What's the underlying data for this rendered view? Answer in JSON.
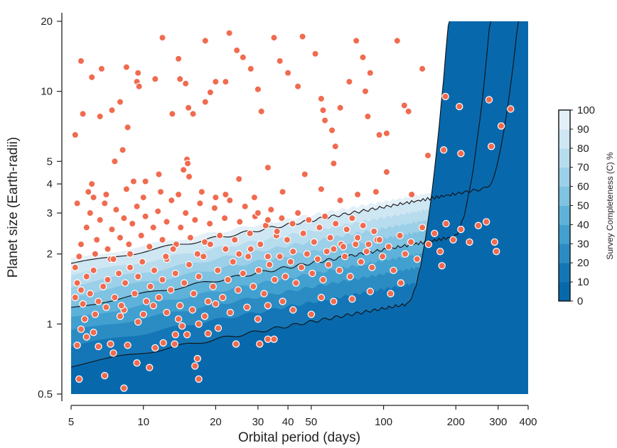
{
  "chart_data": {
    "type": "scatter",
    "title": "",
    "xlabel": "Orbital period (days)",
    "ylabel": "Planet size (Earth-radii)",
    "x_scale": "log",
    "y_scale": "log",
    "xlim": [
      5,
      400
    ],
    "ylim": [
      0.5,
      20
    ],
    "x_ticks": [
      5,
      10,
      20,
      30,
      40,
      50,
      100,
      200,
      300,
      400
    ],
    "x_tick_labels": [
      "5",
      "10",
      "20",
      "30",
      "40",
      "50",
      "100",
      "200",
      "300",
      "400"
    ],
    "y_ticks": [
      0.5,
      1,
      2,
      3,
      4,
      5,
      10,
      20
    ],
    "y_tick_labels": [
      "0.5",
      "1",
      "2",
      "3",
      "4",
      "5",
      "10",
      "20"
    ],
    "grid": false,
    "marker_color": "#f06b4f",
    "background": {
      "type": "contour",
      "label": "Survey Completeness (C) %",
      "levels": [
        0,
        10,
        20,
        30,
        40,
        50,
        60,
        70,
        80,
        90,
        100
      ],
      "colors": [
        "#0868ac",
        "#1476b6",
        "#2b8cc4",
        "#41a0cf",
        "#5eb2d9",
        "#7fc2e1",
        "#9ccfe8",
        "#b7dcee",
        "#cfe6f3",
        "#e4f0f8",
        "#ffffff"
      ],
      "contour_lines_at": [
        10,
        50,
        90
      ],
      "colorbar_ticks": [
        "0",
        "10",
        "20",
        "30",
        "40",
        "50",
        "60",
        "70",
        "80",
        "90",
        "100"
      ]
    },
    "points": [
      [
        5.5,
        13.5
      ],
      [
        5.2,
        6.5
      ],
      [
        5.6,
        8.0
      ],
      [
        6.1,
        11.5
      ],
      [
        6.7,
        12.5
      ],
      [
        6.6,
        7.8
      ],
      [
        7.4,
        8.3
      ],
      [
        7.6,
        5.0
      ],
      [
        8.2,
        5.6
      ],
      [
        8.0,
        9.0
      ],
      [
        8.6,
        7.0
      ],
      [
        8.5,
        12.7
      ],
      [
        9.5,
        12.0
      ],
      [
        9.4,
        11.0
      ],
      [
        9.6,
        10.5
      ],
      [
        11.2,
        11.3
      ],
      [
        12.0,
        17.0
      ],
      [
        13.2,
        8.0
      ],
      [
        14.0,
        13.8
      ],
      [
        14.2,
        11.3
      ],
      [
        15.0,
        10.8
      ],
      [
        15.4,
        8.5
      ],
      [
        16.1,
        8.0
      ],
      [
        18.1,
        16.5
      ],
      [
        18.1,
        9.0
      ],
      [
        19.0,
        9.9
      ],
      [
        20.0,
        11.0
      ],
      [
        22.0,
        11.0
      ],
      [
        22.8,
        17.8
      ],
      [
        24.5,
        15.0
      ],
      [
        26.0,
        14.0
      ],
      [
        28.0,
        12.5
      ],
      [
        30.0,
        10.2
      ],
      [
        31.0,
        8.2
      ],
      [
        35.0,
        17.0
      ],
      [
        37.0,
        13.5
      ],
      [
        40.0,
        12.0
      ],
      [
        44.0,
        10.5
      ],
      [
        46.0,
        17.2
      ],
      [
        52.0,
        14.5
      ],
      [
        55.0,
        9.3
      ],
      [
        56.0,
        8.3
      ],
      [
        57.0,
        7.5
      ],
      [
        61.0,
        6.8
      ],
      [
        62.0,
        4.9
      ],
      [
        63.0,
        5.8
      ],
      [
        66.0,
        8.5
      ],
      [
        72.0,
        11.0
      ],
      [
        77.0,
        16.5
      ],
      [
        82.0,
        14.0
      ],
      [
        86.0,
        7.8
      ],
      [
        84.0,
        10.0
      ],
      [
        88.0,
        12.0
      ],
      [
        96.0,
        6.5
      ],
      [
        103.0,
        6.6
      ],
      [
        114.0,
        16.5
      ],
      [
        122.0,
        8.7
      ],
      [
        127.0,
        8.2
      ],
      [
        145.0,
        12.5
      ],
      [
        153.0,
        5.3
      ],
      [
        178.0,
        5.6
      ],
      [
        181.0,
        9.5
      ],
      [
        207.0,
        8.6
      ],
      [
        210.0,
        5.4
      ],
      [
        275.0,
        9.2
      ],
      [
        281.0,
        5.8
      ],
      [
        309.0,
        7.1
      ],
      [
        338.0,
        8.4
      ],
      [
        5.7,
        1.05
      ],
      [
        5.5,
        0.95
      ],
      [
        5.8,
        0.88
      ],
      [
        6.2,
        0.92
      ],
      [
        5.3,
        0.81
      ],
      [
        6.5,
        0.8
      ],
      [
        7.3,
        0.82
      ],
      [
        7.5,
        0.75
      ],
      [
        8.3,
        1.15
      ],
      [
        8.6,
        0.81
      ],
      [
        11.2,
        0.79
      ],
      [
        12.1,
        0.83
      ],
      [
        15.2,
        0.9
      ],
      [
        16.4,
        0.66
      ],
      [
        17.0,
        1.0
      ],
      [
        18.6,
        0.91
      ],
      [
        20.5,
        0.96
      ],
      [
        24.3,
        0.82
      ],
      [
        30.5,
        0.82
      ],
      [
        33.0,
        0.86
      ],
      [
        35.0,
        0.86
      ],
      [
        5.4,
        0.58
      ],
      [
        6.9,
        0.6
      ],
      [
        8.3,
        0.53
      ],
      [
        17.0,
        0.58
      ],
      [
        9.4,
        0.68
      ],
      [
        10.6,
        0.65
      ],
      [
        16.8,
        0.71
      ],
      [
        13.5,
        0.82
      ],
      [
        13.6,
        0.9
      ],
      [
        14.5,
        0.98
      ],
      [
        10.0,
        1.1
      ]
    ],
    "points_extra": [
      [
        5.2,
        1.75
      ],
      [
        5.3,
        1.5
      ],
      [
        5.5,
        1.4
      ],
      [
        5.8,
        1.6
      ],
      [
        6.0,
        1.35
      ],
      [
        6.2,
        1.7
      ],
      [
        6.5,
        1.25
      ],
      [
        6.8,
        1.45
      ],
      [
        7.1,
        1.55
      ],
      [
        7.3,
        1.9
      ],
      [
        7.6,
        1.3
      ],
      [
        7.9,
        1.65
      ],
      [
        8.1,
        1.2
      ],
      [
        8.4,
        1.5
      ],
      [
        8.8,
        1.75
      ],
      [
        9.2,
        1.35
      ],
      [
        9.5,
        1.6
      ],
      [
        9.9,
        1.85
      ],
      [
        10.3,
        1.25
      ],
      [
        10.7,
        1.45
      ],
      [
        11.1,
        1.7
      ],
      [
        11.6,
        1.3
      ],
      [
        12.0,
        1.55
      ],
      [
        12.5,
        1.9
      ],
      [
        13.0,
        1.4
      ],
      [
        13.6,
        1.65
      ],
      [
        14.2,
        1.2
      ],
      [
        14.8,
        1.5
      ],
      [
        15.5,
        1.8
      ],
      [
        16.2,
        1.35
      ],
      [
        17.0,
        1.6
      ],
      [
        17.8,
        1.95
      ],
      [
        18.6,
        1.25
      ],
      [
        19.5,
        1.45
      ],
      [
        20.4,
        1.7
      ],
      [
        21.4,
        1.3
      ],
      [
        22.5,
        1.55
      ],
      [
        23.6,
        1.85
      ],
      [
        24.8,
        1.4
      ],
      [
        26.0,
        1.65
      ],
      [
        27.3,
        1.95
      ],
      [
        28.7,
        1.45
      ],
      [
        30.2,
        1.7
      ],
      [
        31.8,
        1.35
      ],
      [
        33.5,
        1.8
      ],
      [
        35.2,
        1.55
      ],
      [
        37.0,
        1.95
      ],
      [
        39.0,
        1.6
      ],
      [
        41.0,
        1.85
      ],
      [
        43.2,
        1.5
      ],
      [
        45.5,
        1.75
      ],
      [
        48.0,
        2.0
      ],
      [
        50.5,
        1.65
      ],
      [
        53.2,
        1.9
      ],
      [
        56.0,
        1.55
      ],
      [
        59.0,
        1.8
      ],
      [
        62.0,
        2.1
      ],
      [
        65.5,
        1.7
      ],
      [
        69.0,
        1.95
      ],
      [
        72.6,
        1.6
      ],
      [
        76.5,
        2.2
      ],
      [
        80.5,
        1.85
      ],
      [
        85.0,
        2.05
      ],
      [
        89.5,
        1.75
      ],
      [
        94.0,
        2.3
      ],
      [
        99.0,
        1.95
      ],
      [
        105.0,
        2.15
      ],
      [
        110.0,
        1.7
      ],
      [
        117.0,
        2.4
      ],
      [
        123.0,
        2.0
      ],
      [
        130.0,
        2.25
      ],
      [
        138.0,
        1.9
      ],
      [
        145.0,
        2.6
      ],
      [
        154.0,
        2.2
      ],
      [
        163.0,
        2.45
      ],
      [
        172.0,
        2.05
      ],
      [
        182.0,
        2.7
      ],
      [
        195.0,
        2.3
      ],
      [
        210.0,
        2.55
      ],
      [
        228.0,
        2.25
      ],
      [
        248.0,
        2.65
      ],
      [
        268.0,
        2.75
      ],
      [
        290.0,
        2.25
      ],
      [
        295.0,
        2.05
      ],
      [
        175.0,
        1.78
      ],
      [
        107.0,
        1.35
      ],
      [
        118.0,
        1.5
      ],
      [
        88.0,
        1.38
      ],
      [
        74.0,
        1.28
      ],
      [
        62.0,
        1.25
      ],
      [
        55.0,
        1.3
      ],
      [
        50.0,
        1.1
      ],
      [
        42.0,
        1.15
      ],
      [
        38.0,
        1.25
      ],
      [
        33.0,
        1.2
      ],
      [
        30.0,
        1.05
      ],
      [
        27.0,
        1.18
      ],
      [
        23.0,
        1.12
      ],
      [
        20.0,
        1.22
      ],
      [
        18.0,
        1.08
      ],
      [
        16.0,
        1.15
      ],
      [
        14.0,
        1.05
      ],
      [
        12.5,
        1.12
      ],
      [
        11.0,
        1.2
      ],
      [
        9.5,
        1.02
      ],
      [
        8.0,
        1.08
      ],
      [
        7.0,
        1.18
      ],
      [
        6.3,
        1.1
      ],
      [
        5.6,
        1.22
      ],
      [
        5.2,
        1.3
      ],
      [
        5.5,
        2.2
      ],
      [
        5.8,
        2.6
      ],
      [
        6.0,
        3.0
      ],
      [
        6.2,
        3.5
      ],
      [
        6.4,
        2.3
      ],
      [
        6.6,
        2.8
      ],
      [
        6.9,
        3.3
      ],
      [
        7.1,
        2.1
      ],
      [
        7.4,
        2.55
      ],
      [
        7.7,
        3.1
      ],
      [
        8.0,
        2.35
      ],
      [
        8.3,
        2.85
      ],
      [
        8.7,
        2.2
      ],
      [
        9.0,
        2.7
      ],
      [
        9.4,
        3.2
      ],
      [
        9.8,
        2.4
      ],
      [
        10.2,
        2.9
      ],
      [
        10.6,
        2.15
      ],
      [
        11.0,
        2.6
      ],
      [
        11.5,
        3.05
      ],
      [
        12.0,
        2.3
      ],
      [
        12.5,
        2.75
      ],
      [
        13.1,
        3.4
      ],
      [
        13.7,
        2.2
      ],
      [
        14.3,
        2.6
      ],
      [
        15.0,
        3.0
      ],
      [
        15.7,
        2.35
      ],
      [
        16.4,
        2.8
      ],
      [
        17.2,
        3.3
      ],
      [
        18.0,
        2.25
      ],
      [
        18.9,
        2.7
      ],
      [
        19.8,
        3.15
      ],
      [
        20.8,
        2.4
      ],
      [
        21.8,
        2.85
      ],
      [
        22.9,
        3.4
      ],
      [
        24.0,
        2.3
      ],
      [
        25.2,
        2.75
      ],
      [
        26.5,
        3.2
      ],
      [
        27.8,
        2.45
      ],
      [
        29.2,
        2.9
      ],
      [
        30.7,
        2.2
      ],
      [
        32.3,
        2.65
      ],
      [
        34.0,
        3.1
      ],
      [
        35.8,
        2.4
      ],
      [
        37.7,
        2.85
      ],
      [
        39.7,
        2.3
      ],
      [
        41.8,
        2.7
      ],
      [
        44.0,
        3.0
      ],
      [
        46.3,
        2.45
      ],
      [
        48.8,
        2.8
      ],
      [
        51.4,
        2.25
      ],
      [
        54.1,
        2.6
      ],
      [
        57.0,
        2.9
      ],
      [
        60.0,
        2.35
      ],
      [
        63.2,
        2.7
      ],
      [
        66.6,
        2.2
      ],
      [
        70.2,
        2.55
      ],
      [
        74.0,
        2.85
      ],
      [
        78.0,
        2.35
      ],
      [
        82.2,
        2.65
      ],
      [
        86.6,
        2.2
      ],
      [
        91.3,
        2.5
      ],
      [
        96.2,
        2.3
      ],
      [
        5.3,
        3.3
      ],
      [
        5.9,
        3.7
      ],
      [
        6.1,
        4.0
      ],
      [
        7.0,
        3.6
      ],
      [
        8.5,
        3.8
      ],
      [
        10.0,
        3.5
      ],
      [
        11.8,
        3.7
      ],
      [
        14.0,
        3.6
      ],
      [
        15.5,
        4.3
      ],
      [
        15.2,
        5.1
      ],
      [
        17.5,
        3.7
      ],
      [
        20.0,
        3.5
      ],
      [
        22.0,
        3.6
      ],
      [
        25.0,
        4.2
      ],
      [
        29.0,
        3.5
      ],
      [
        33.0,
        4.7
      ],
      [
        38.0,
        3.7
      ],
      [
        47.0,
        4.4
      ],
      [
        55.0,
        3.8
      ],
      [
        66.0,
        3.4
      ],
      [
        78.0,
        3.6
      ],
      [
        93.0,
        3.7
      ],
      [
        103.0,
        4.5
      ],
      [
        131.0,
        3.6
      ],
      [
        14.7,
        4.6
      ],
      [
        15.3,
        4.9
      ],
      [
        11.6,
        4.4
      ],
      [
        10.2,
        4.1
      ],
      [
        9.1,
        4.1
      ],
      [
        30.0,
        3.0
      ],
      [
        33.0,
        2.8
      ],
      [
        36.0,
        2.5
      ],
      [
        22.0,
        2.1
      ],
      [
        19.0,
        2.2
      ],
      [
        16.8,
        2.0
      ],
      [
        13.3,
        2.1
      ],
      [
        8.8,
        2.0
      ],
      [
        7.5,
        1.9
      ],
      [
        6.3,
        2.0
      ],
      [
        5.4,
        1.95
      ],
      [
        12.4,
        1.95
      ],
      [
        25.0,
        2.0
      ],
      [
        42.0,
        2.05
      ],
      [
        33.0,
        1.95
      ],
      [
        28.0,
        2.1
      ],
      [
        58.0,
        2.05
      ],
      [
        68.0,
        2.15
      ]
    ]
  }
}
